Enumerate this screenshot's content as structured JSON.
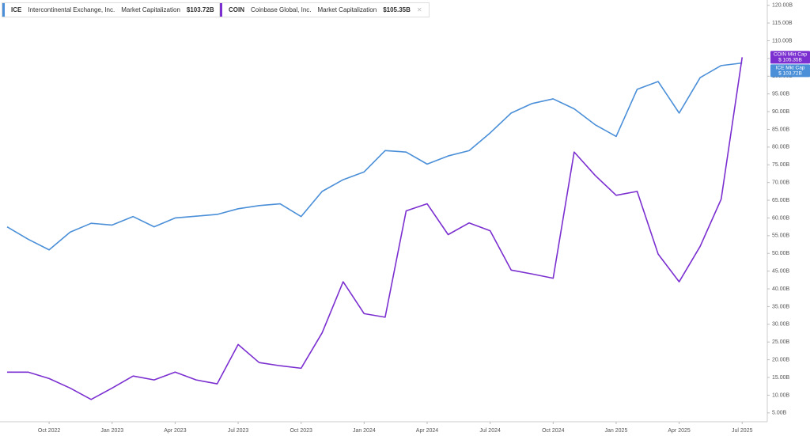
{
  "chart_data": {
    "type": "line",
    "header": [
      {
        "ticker": "ICE",
        "name": "Intercontinental Exchange, Inc.",
        "metric": "Market Capitalization",
        "value": "$103.72B"
      },
      {
        "ticker": "COIN",
        "name": "Coinbase Global, Inc.",
        "metric": "Market Capitalization",
        "value": "$105.35B"
      }
    ],
    "x": [
      "Aug 2022",
      "Sep 2022",
      "Oct 2022",
      "Nov 2022",
      "Dec 2022",
      "Jan 2023",
      "Feb 2023",
      "Mar 2023",
      "Apr 2023",
      "May 2023",
      "Jun 2023",
      "Jul 2023",
      "Aug 2023",
      "Sep 2023",
      "Oct 2023",
      "Nov 2023",
      "Dec 2023",
      "Jan 2024",
      "Feb 2024",
      "Mar 2024",
      "Apr 2024",
      "May 2024",
      "Jun 2024",
      "Jul 2024",
      "Aug 2024",
      "Sep 2024",
      "Oct 2024",
      "Nov 2024",
      "Dec 2024",
      "Jan 2025",
      "Feb 2025",
      "Mar 2025",
      "Apr 2025",
      "May 2025",
      "Jun 2025",
      "Jul 2025"
    ],
    "xticks": [
      "Oct 2022",
      "Jan 2023",
      "Apr 2023",
      "Jul 2023",
      "Oct 2023",
      "Jan 2024",
      "Apr 2024",
      "Jul 2024",
      "Oct 2024",
      "Jan 2025",
      "Apr 2025",
      "Jul 2025"
    ],
    "series": [
      {
        "name": "ICE Mkt Cap",
        "color": "#4a8fd8",
        "end_label": "$ 103.72B",
        "values": [
          57.5,
          54,
          51,
          56,
          58.5,
          58,
          60.4,
          57.5,
          60,
          60.5,
          61,
          62.6,
          63.5,
          64,
          60.4,
          67.5,
          70.8,
          73,
          79,
          78.6,
          75.2,
          77.5,
          79,
          84,
          89.6,
          92.3,
          93.6,
          90.8,
          86.3,
          83,
          96.3,
          98.5,
          89.6,
          99.6,
          103,
          103.72
        ]
      },
      {
        "name": "COIN Mkt Cap",
        "color": "#7b2fd0",
        "end_label": "$ 105.35B",
        "values": [
          16.5,
          16.5,
          14.7,
          12,
          8.8,
          12,
          15.4,
          14.3,
          16.5,
          14.3,
          13.2,
          24.3,
          19.2,
          18.3,
          17.6,
          27.6,
          42,
          33,
          32,
          62,
          64,
          55.3,
          58.6,
          56.4,
          45.3,
          44.2,
          43,
          78.6,
          72,
          66.4,
          67.5,
          49.8,
          42,
          52,
          65.3,
          105.35
        ]
      }
    ],
    "ylim": [
      2.5,
      121.5
    ],
    "yticks": [
      {
        "value": 5,
        "label": "5.00B"
      },
      {
        "value": 10,
        "label": "10.00B"
      },
      {
        "value": 15,
        "label": "15.00B"
      },
      {
        "value": 20,
        "label": "20.00B"
      },
      {
        "value": 25,
        "label": "25.00B"
      },
      {
        "value": 30,
        "label": "30.00B"
      },
      {
        "value": 35,
        "label": "35.00B"
      },
      {
        "value": 40,
        "label": "40.00B"
      },
      {
        "value": 45,
        "label": "45.00B"
      },
      {
        "value": 50,
        "label": "50.00B"
      },
      {
        "value": 55,
        "label": "55.00B"
      },
      {
        "value": 60,
        "label": "60.00B"
      },
      {
        "value": 65,
        "label": "65.00B"
      },
      {
        "value": 70,
        "label": "70.00B"
      },
      {
        "value": 75,
        "label": "75.00B"
      },
      {
        "value": 80,
        "label": "80.00B"
      },
      {
        "value": 85,
        "label": "85.00B"
      },
      {
        "value": 90,
        "label": "90.00B"
      },
      {
        "value": 95,
        "label": "95.00B"
      },
      {
        "value": 100,
        "label": "100.00B"
      },
      {
        "value": 105,
        "label": "105.00B"
      },
      {
        "value": 110,
        "label": "110.00B"
      },
      {
        "value": 115,
        "label": "115.00B"
      },
      {
        "value": 120,
        "label": "120.00B"
      }
    ]
  }
}
